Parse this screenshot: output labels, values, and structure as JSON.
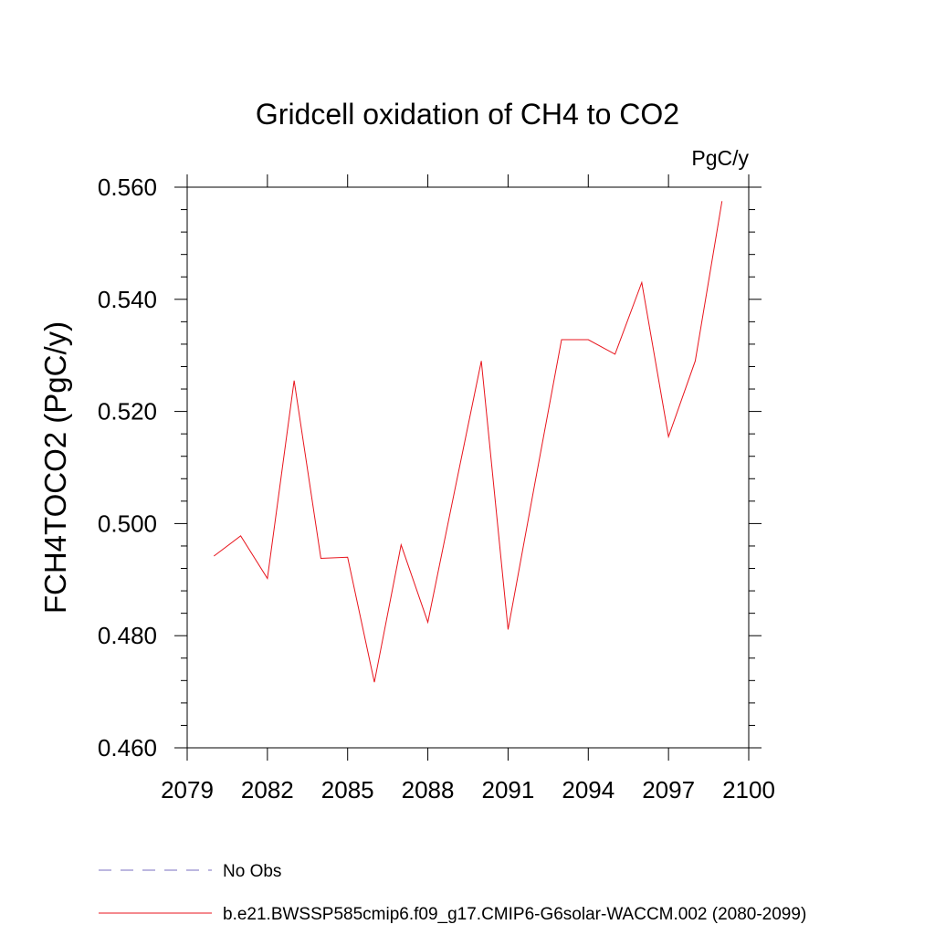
{
  "chart_data": {
    "type": "line",
    "title": "Gridcell oxidation of CH4 to CO2",
    "units": "PgC/y",
    "xlabel": "",
    "ylabel": "FCH4TOCO2  (PgC/y)",
    "xlim": [
      2079,
      2100
    ],
    "ylim": [
      0.46,
      0.56
    ],
    "x_ticks": [
      2079,
      2082,
      2085,
      2088,
      2091,
      2094,
      2097,
      2100
    ],
    "x_tick_labels": [
      "2079",
      "2082",
      "2085",
      "2088",
      "2091",
      "2094",
      "2097",
      "2100"
    ],
    "y_ticks": [
      0.46,
      0.48,
      0.5,
      0.52,
      0.54,
      0.56
    ],
    "y_tick_labels": [
      "0.460",
      "0.480",
      "0.500",
      "0.520",
      "0.540",
      "0.560"
    ],
    "grid": false,
    "legend_position": "bottom-left",
    "series": [
      {
        "name": "No Obs",
        "color": "#7a6fc0",
        "style": "dashed",
        "x": [],
        "y": []
      },
      {
        "name": "b.e21.BWSSP585cmip6.f09_g17.CMIP6-G6solar-WACCM.002 (2080-2099)",
        "color": "#e8141c",
        "style": "solid",
        "x": [
          2080,
          2081,
          2082,
          2083,
          2084,
          2085,
          2086,
          2087,
          2088,
          2089,
          2090,
          2091,
          2092,
          2093,
          2094,
          2095,
          2096,
          2097,
          2098,
          2099
        ],
        "y": [
          0.4942,
          0.4978,
          0.4902,
          0.5255,
          0.4938,
          0.494,
          0.4717,
          0.4962,
          0.4824,
          0.5058,
          0.529,
          0.4811,
          0.5071,
          0.5328,
          0.5328,
          0.5302,
          0.543,
          0.5155,
          0.529,
          0.5575
        ]
      }
    ]
  }
}
